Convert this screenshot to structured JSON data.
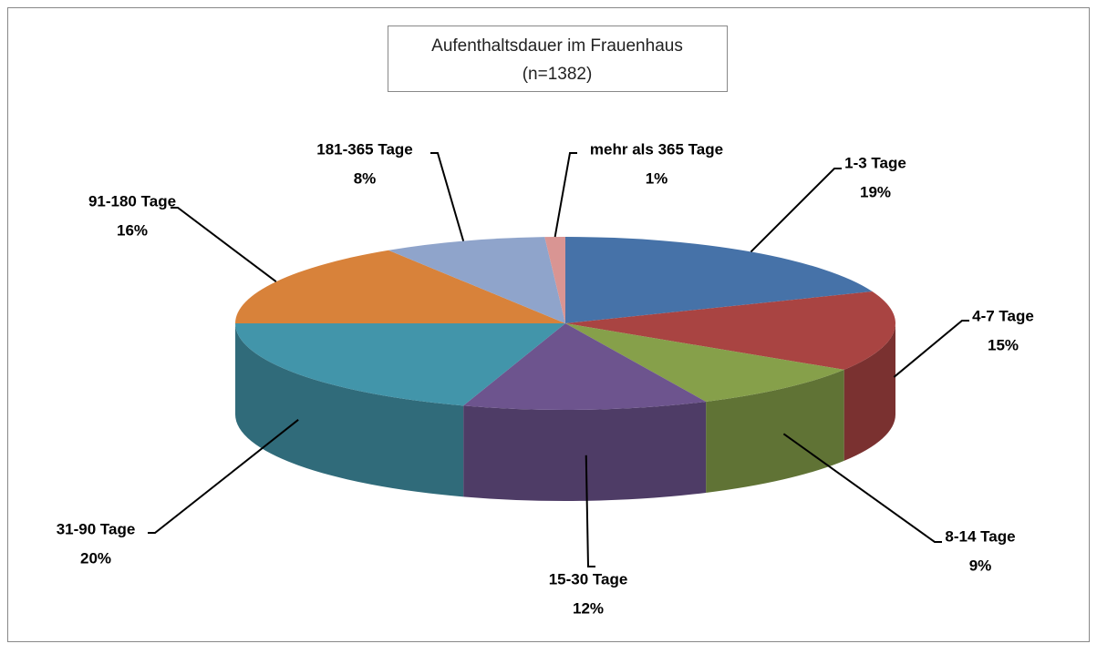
{
  "chart_data": {
    "type": "pie3d",
    "title": "Aufenthaltsdauer im Frauenhaus",
    "subtitle": "(n=1382)",
    "categories": [
      "1-3 Tage",
      "4-7 Tage",
      "8-14 Tage",
      "15-30 Tage",
      "31-90 Tage",
      "91-180 Tage",
      "181-365 Tage",
      "mehr als 365 Tage"
    ],
    "values": [
      19,
      15,
      9,
      12,
      20,
      16,
      8,
      1
    ],
    "value_labels": [
      "19%",
      "15%",
      "9%",
      "12%",
      "20%",
      "16%",
      "8%",
      "1%"
    ],
    "colors": [
      "#4672a8",
      "#a94442",
      "#86a04a",
      "#6d548e",
      "#4295aa",
      "#d8823a",
      "#8fa4cb",
      "#d99593"
    ]
  }
}
